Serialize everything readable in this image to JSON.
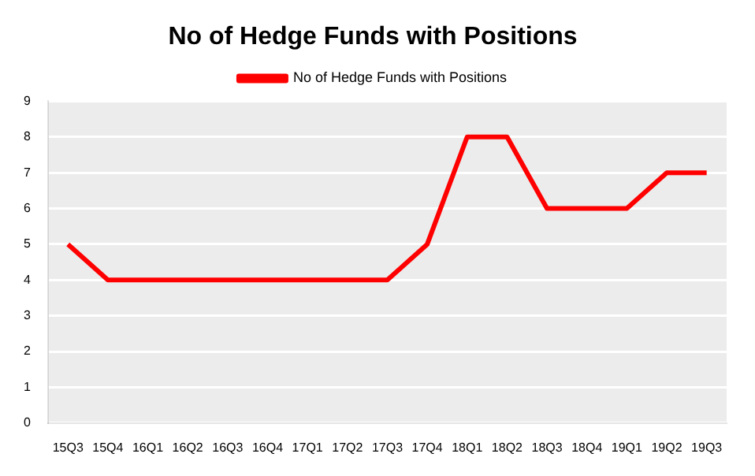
{
  "chart_data": {
    "type": "line",
    "title": "No of Hedge Funds with Positions",
    "categories": [
      "15Q3",
      "15Q4",
      "16Q1",
      "16Q2",
      "16Q3",
      "16Q4",
      "17Q1",
      "17Q2",
      "17Q3",
      "17Q4",
      "18Q1",
      "18Q2",
      "18Q3",
      "18Q4",
      "19Q1",
      "19Q2",
      "19Q3"
    ],
    "series": [
      {
        "name": "No of Hedge Funds with Positions",
        "color": "#ff0000",
        "values": [
          5,
          4,
          4,
          4,
          4,
          4,
          4,
          4,
          4,
          5,
          8,
          8,
          6,
          6,
          6,
          7,
          7
        ]
      }
    ],
    "ylim": [
      0,
      9
    ],
    "yticks": [
      0,
      1,
      2,
      3,
      4,
      5,
      6,
      7,
      8,
      9
    ],
    "grid": "y",
    "legend": "top",
    "marker": "none",
    "line_style": "solid"
  }
}
